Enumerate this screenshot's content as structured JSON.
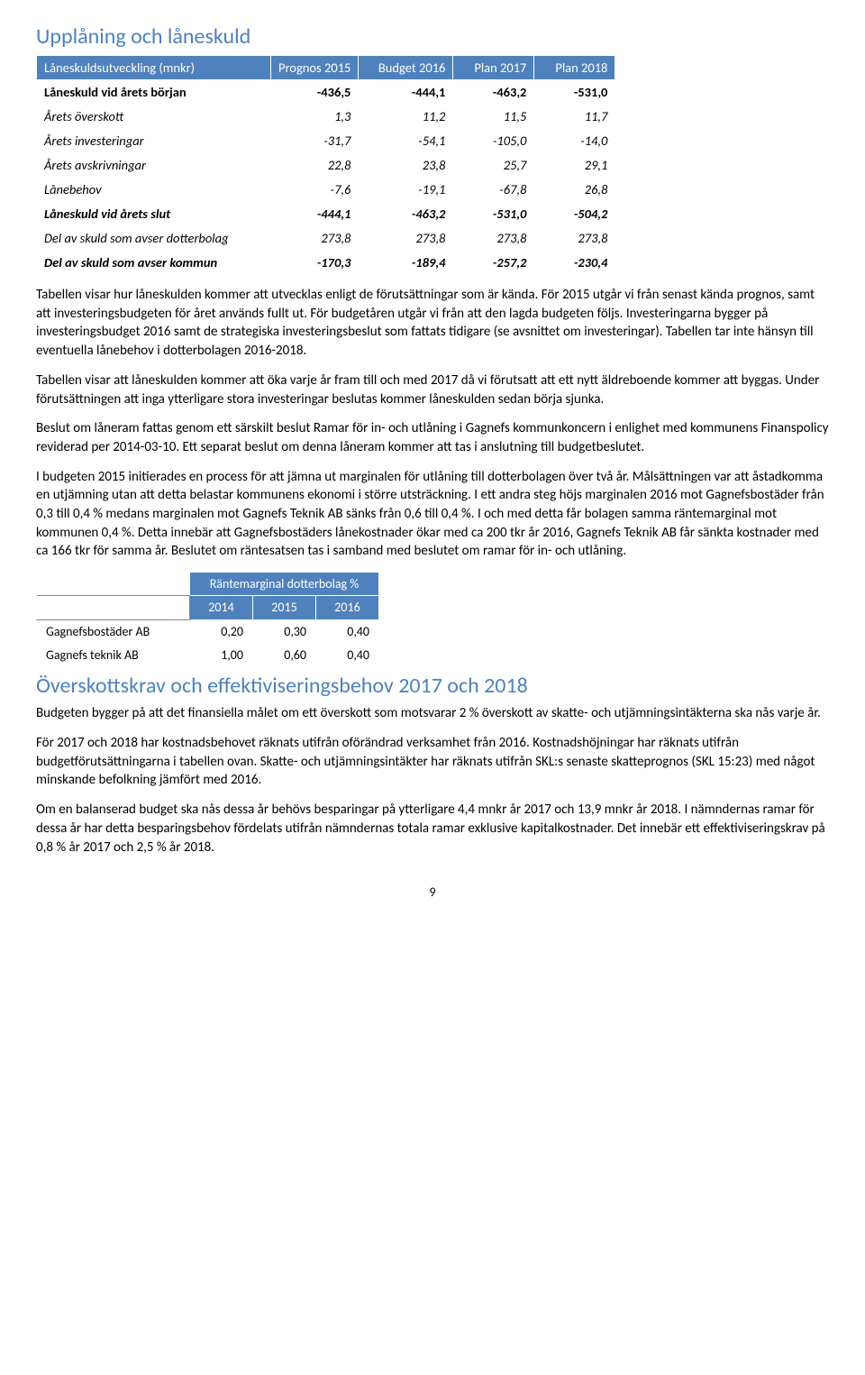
{
  "section1": {
    "title": "Upplåning och låneskuld",
    "table": {
      "headers": [
        "Låneskuldsutveckling   (mnkr)",
        "Prognos 2015",
        "Budget 2016",
        "Plan 2017",
        "Plan 2018"
      ],
      "rows": [
        {
          "style": "bold",
          "cells": [
            "Låneskuld vid årets början",
            "-436,5",
            "-444,1",
            "-463,2",
            "-531,0"
          ]
        },
        {
          "style": "italic",
          "cells": [
            "Årets överskott",
            "1,3",
            "11,2",
            "11,5",
            "11,7"
          ]
        },
        {
          "style": "italic",
          "cells": [
            "Årets investeringar",
            "-31,7",
            "-54,1",
            "-105,0",
            "-14,0"
          ]
        },
        {
          "style": "italic",
          "cells": [
            "Årets avskrivningar",
            "22,8",
            "23,8",
            "25,7",
            "29,1"
          ]
        },
        {
          "style": "italic",
          "cells": [
            "Lånebehov",
            "-7,6",
            "-19,1",
            "-67,8",
            "26,8"
          ]
        },
        {
          "style": "bolditalic",
          "cells": [
            "Låneskuld vid årets slut",
            "-444,1",
            "-463,2",
            "-531,0",
            "-504,2"
          ]
        },
        {
          "style": "italic",
          "cells": [
            "Del av skuld som avser dotterbolag",
            "273,8",
            "273,8",
            "273,8",
            "273,8"
          ]
        },
        {
          "style": "bolditalic",
          "cells": [
            "Del av skuld som avser kommun",
            "-170,3",
            "-189,4",
            "-257,2",
            "-230,4"
          ]
        }
      ],
      "col_widths": [
        "260px",
        "95px",
        "105px",
        "90px",
        "90px"
      ]
    },
    "paragraphs": [
      "Tabellen visar hur låneskulden kommer att utvecklas enligt de förutsättningar som är kända. För 2015 utgår vi från senast kända prognos, samt att investeringsbudgeten för året används fullt ut. För budgetåren utgår vi från att den lagda budgeten följs. Investeringarna bygger på investeringsbudget 2016 samt de strategiska investeringsbeslut som fattats tidigare (se avsnittet om investeringar). Tabellen tar inte hänsyn till eventuella lånebehov i dotterbolagen 2016-2018.",
      "Tabellen visar att låneskulden kommer att öka varje år fram till och med 2017 då vi förutsatt att ett nytt äldreboende kommer att byggas. Under förutsättningen att inga ytterligare stora investeringar beslutas kommer låneskulden sedan börja sjunka.",
      "Beslut om låneram fattas genom ett särskilt beslut Ramar för in- och utlåning i Gagnefs kommunkoncern i enlighet med kommunens Finanspolicy reviderad per 2014-03-10.  Ett separat beslut om denna låneram kommer att tas i anslutning till budgetbeslutet.",
      "I budgeten 2015 initierades en process för att jämna ut marginalen för utlåning till dotterbolagen över två år. Målsättningen var att åstadkomma en utjämning utan att detta belastar kommunens ekonomi i större utsträckning. I ett andra steg höjs marginalen 2016 mot Gagnefsbostäder från 0,3 till 0,4 % medans marginalen mot Gagnefs Teknik AB sänks från 0,6 till 0,4 %. I och med detta får bolagen samma räntemarginal mot kommunen 0,4 %.  Detta innebär att Gagnefsbostäders lånekostnader ökar med ca 200 tkr år 2016, Gagnefs Teknik AB får sänkta kostnader med ca 166 tkr för samma år. Beslutet om räntesatsen tas i samband med beslutet om ramar för in- och utlåning."
    ]
  },
  "section2": {
    "small_table": {
      "super_header": "Räntemarginal dotterbolag %",
      "headers": [
        "",
        "2014",
        "2015",
        "2016"
      ],
      "rows": [
        {
          "cells": [
            "Gagnefsbostäder AB",
            "0,20",
            "0,30",
            "0,40"
          ]
        },
        {
          "cells": [
            "Gagnefs teknik AB",
            "1,00",
            "0,60",
            "0,40"
          ]
        }
      ],
      "col_widths": [
        "170px",
        "70px",
        "70px",
        "70px"
      ]
    },
    "title": "Överskottskrav och effektiviseringsbehov 2017 och 2018",
    "paragraphs": [
      "Budgeten bygger på att det finansiella målet om ett överskott som motsvarar 2 % överskott av skatte- och utjämningsintäkterna ska nås varje år.",
      "För 2017 och 2018 har kostnadsbehovet räknats utifrån oförändrad verksamhet från 2016.  Kostnadshöjningar har räknats utifrån budgetförutsättningarna i tabellen ovan. Skatte- och utjämningsintäkter har räknats utifrån SKL:s senaste skatteprognos (SKL 15:23) med något minskande befolkning jämfört med 2016.",
      "Om en balanserad budget ska nås dessa år behövs besparingar på ytterligare 4,4 mnkr år 2017 och 13,9 mnkr år 2018.  I nämndernas ramar för dessa år har detta besparingsbehov fördelats utifrån nämndernas totala ramar exklusive kapitalkostnader.  Det innebär ett effektiviseringskrav på 0,8 % år 2017 och 2,5 % år 2018."
    ]
  },
  "page_number": "9"
}
